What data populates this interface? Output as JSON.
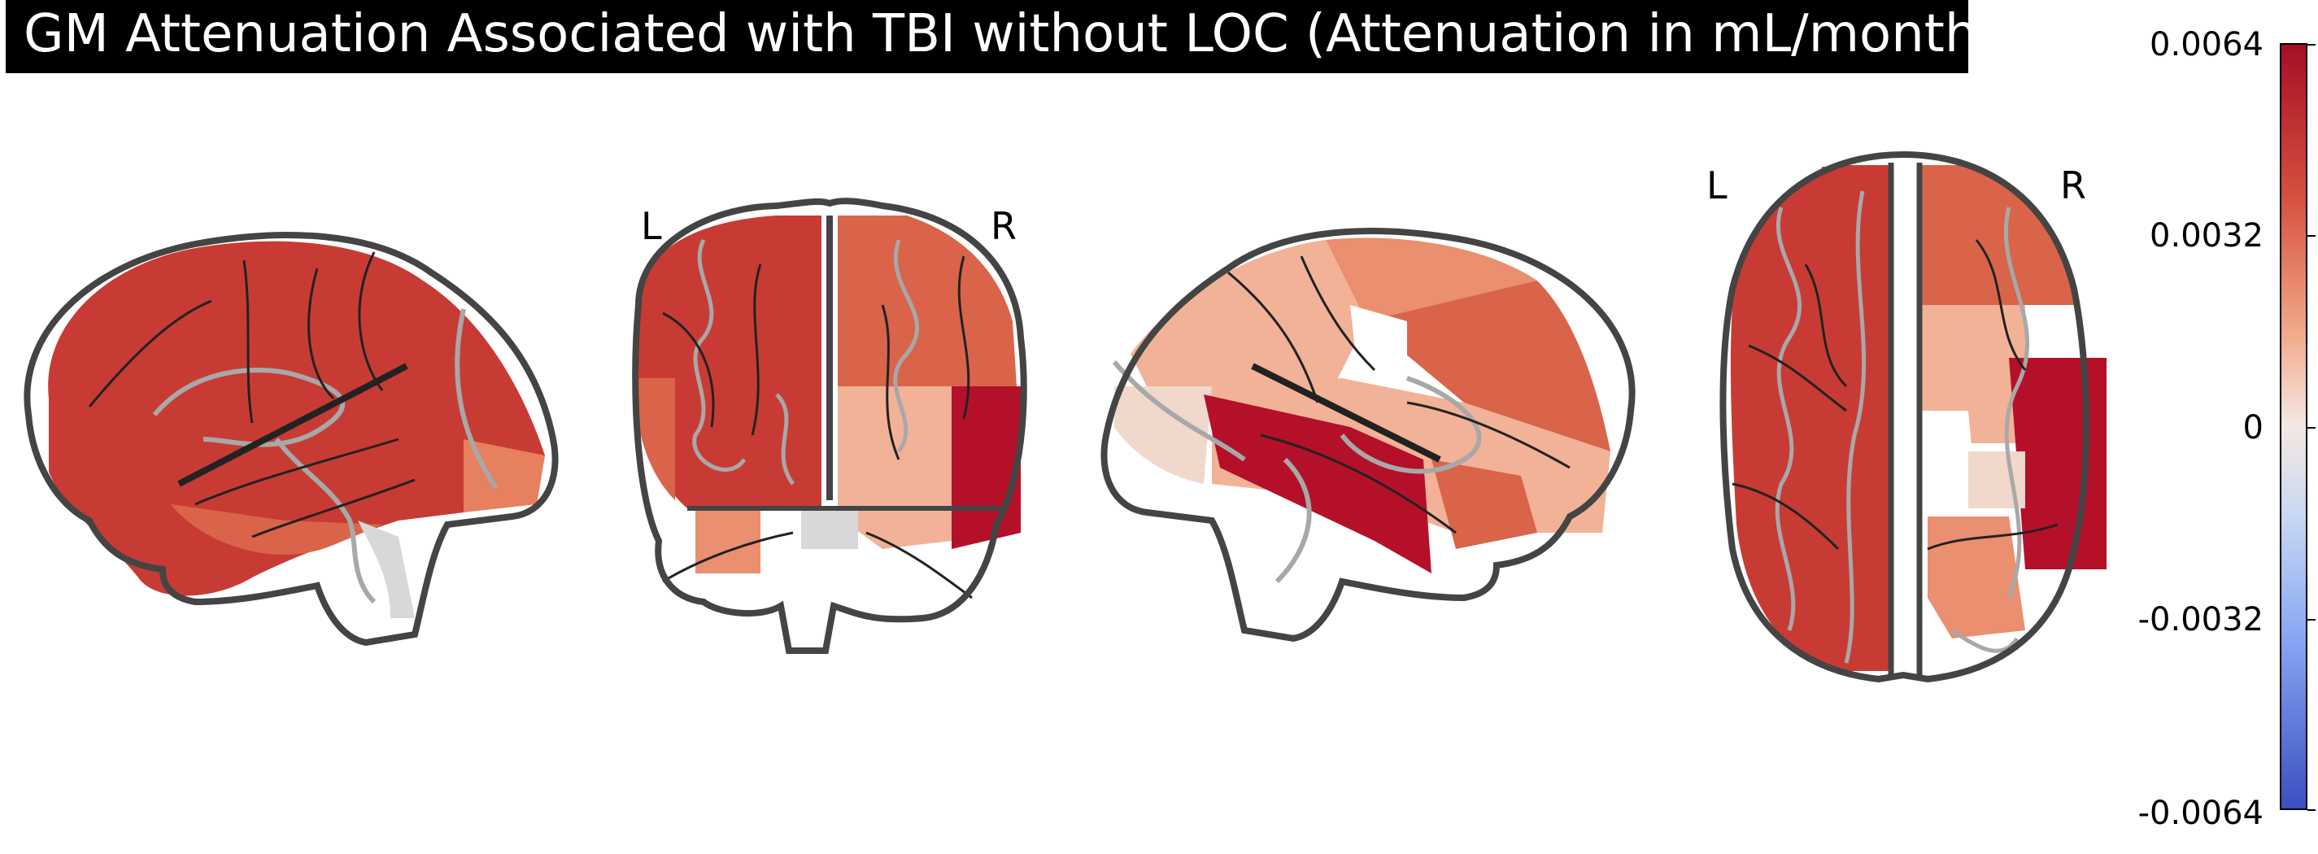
{
  "title": "GM Attenuation Associated with TBI without LOC (Attenuation in mL/month)",
  "views": {
    "coronal_left_label": "L",
    "coronal_right_label": "R",
    "axial_left_label": "L",
    "axial_right_label": "R"
  },
  "colorbar": {
    "colormap": "cold_hot (blue-white-red)",
    "ticks": [
      "0.0064",
      "0.0032",
      "0",
      "-0.0032",
      "-0.0064"
    ],
    "max": 0.0064,
    "min": -0.0064
  },
  "colors": {
    "deep_red": "#b5102a",
    "red": "#c83b34",
    "orange_red": "#d9644a",
    "salmon": "#ea8f6f",
    "light_salmon": "#f2b297",
    "pale": "#f1d8cc",
    "gray": "#d8d8d8",
    "outline": "#444444"
  }
}
